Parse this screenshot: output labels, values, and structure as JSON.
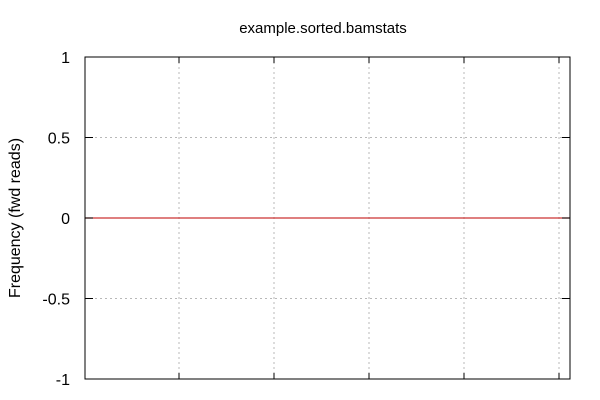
{
  "chart_data": {
    "type": "line",
    "title": "example.sorted.bamstats",
    "xlabel": "",
    "ylabel": "Frequency (fwd reads)",
    "ylim": [
      -1,
      1
    ],
    "y_ticks": [
      "1",
      "0.5",
      "0",
      "-0.5",
      "-1"
    ],
    "x_tick_count": 6,
    "grid": true,
    "series": [
      {
        "color": "#cc3333",
        "x": [
          0,
          1
        ],
        "y": [
          0,
          0
        ]
      }
    ]
  }
}
